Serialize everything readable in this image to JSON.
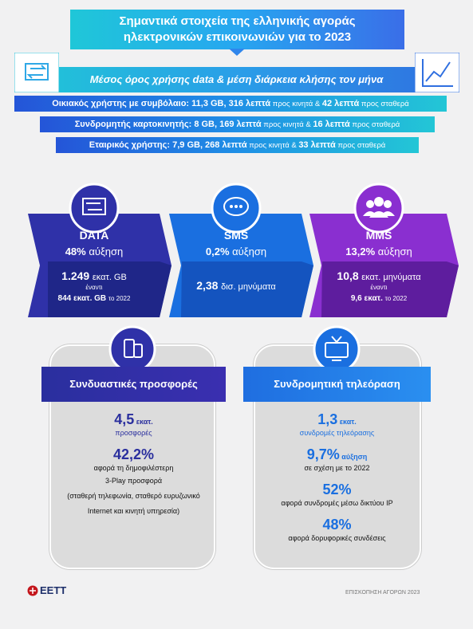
{
  "header": {
    "title_lines": [
      "Σημαντικά στοιχεία της ελληνικής αγοράς",
      "ηλεκτρονικών επικοινωνιών για το 2023"
    ]
  },
  "usage": {
    "banner": "Μέσος όρος χρήσης data & μέση διάρκεια κλήσης τον μήνα",
    "rows": [
      [
        {
          "text": "Οικιακός χρήστης με συμβόλαιο: ",
          "bold": true
        },
        {
          "text": "11,3 GB, 316 λεπτά",
          "bold": true
        },
        {
          "text": " προς κινητά & ",
          "bold": false
        },
        {
          "text": "42 λεπτά",
          "bold": true
        },
        {
          "text": " προς σταθερά",
          "bold": false
        }
      ],
      [
        {
          "text": "Συνδρομητής καρτοκινητής: ",
          "bold": true
        },
        {
          "text": "8 GB, 169 λεπτά",
          "bold": true
        },
        {
          "text": " προς κινητά & ",
          "bold": false
        },
        {
          "text": "16 λεπτά",
          "bold": true
        },
        {
          "text": " προς σταθερά",
          "bold": false
        }
      ],
      [
        {
          "text": "Εταιρικός χρήστης: ",
          "bold": true
        },
        {
          "text": "7,9 GB, 268 λεπτά",
          "bold": true
        },
        {
          "text": " προς κινητά & ",
          "bold": false
        },
        {
          "text": "33 λεπτά",
          "bold": true
        },
        {
          "text": " προς σταθερά",
          "bold": false
        }
      ]
    ]
  },
  "cards": [
    {
      "title": "DATA",
      "growth": "48%",
      "growth_label": "αύξηση",
      "value": "1.249",
      "unit": "εκατ. GB",
      "versus": "έναντι",
      "previous": "844 εκατ. GB",
      "previous_note": "το 2022"
    },
    {
      "title": "SMS",
      "growth": "0,2%",
      "growth_label": "αύξηση",
      "value": "2,38",
      "unit": "δισ. μηνύματα"
    },
    {
      "title": "MMS",
      "growth": "13,2%",
      "growth_label": "αύξηση",
      "value": "10,8",
      "unit": "εκατ. μηνύματα",
      "versus": "έναντι",
      "previous": "9,6 εκατ.",
      "previous_note": "το 2022"
    }
  ],
  "panels": [
    {
      "title": "Συνδυαστικές προσφορές",
      "items": [
        {
          "value": "4,5",
          "unit": "εκατ.",
          "lines": [
            "προσφορές"
          ]
        },
        {
          "value": "42,2%",
          "lines": [
            "αφορά τη δημοφιλέστερη",
            "3-Play προσφορά",
            "(σταθερή τηλεφωνία, σταθερό ευρυζωνικό",
            "Internet και κινητή υπηρεσία)"
          ]
        }
      ]
    },
    {
      "title": "Συνδρομητική τηλεόραση",
      "items": [
        {
          "value": "1,3",
          "unit": "εκατ.",
          "lines": [
            "συνδρομές τηλεόρασης"
          ]
        },
        {
          "value": "9,7%",
          "unit": "αύξηση",
          "lines": [
            "σε σχέση με το 2022"
          ]
        },
        {
          "value": "52%",
          "lines": [
            "αφορά συνδρομές μέσω δικτύου IP"
          ]
        },
        {
          "value": "48%",
          "lines": [
            "αφορά δορυφορικές συνδέσεις"
          ]
        }
      ]
    }
  ],
  "footer": {
    "logo": "ΕΕΤΤ",
    "note": "ΕΠΙΣΚΟΠΗΣΗ ΑΓΟΡΩΝ 2023"
  }
}
